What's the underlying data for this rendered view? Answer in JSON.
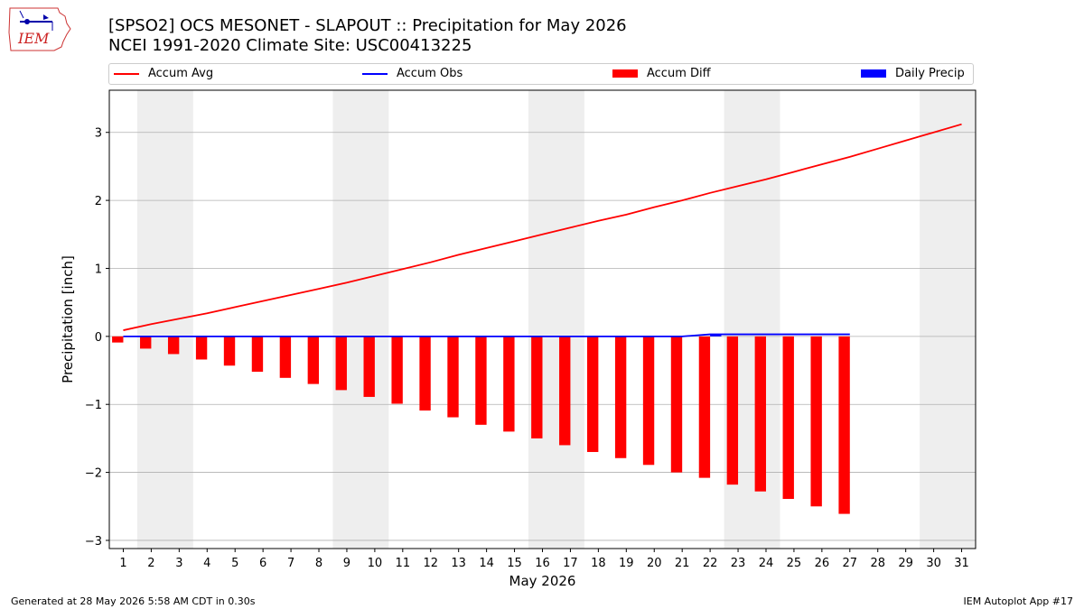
{
  "title_line1": "[SPSO2] OCS MESONET - SLAPOUT :: Precipitation for May 2026",
  "title_line2": "NCEI 1991-2020 Climate Site: USC00413225",
  "logo_text": "IEM",
  "footer_left": "Generated at 28 May 2026 5:58 AM CDT in 0.30s",
  "footer_right": "IEM Autoplot App #17",
  "colors": {
    "accum_avg": "#ff0000",
    "accum_obs": "#0000ff",
    "accum_diff": "#ff0000",
    "daily_precip": "#0000ff",
    "weekend_shade": "#eeeeee",
    "grid": "#b0b0b0"
  },
  "legend": [
    {
      "label": "Accum Avg",
      "kind": "line",
      "color": "#ff0000"
    },
    {
      "label": "Accum Obs",
      "kind": "line",
      "color": "#0000ff"
    },
    {
      "label": "Accum Diff",
      "kind": "box",
      "color": "#ff0000"
    },
    {
      "label": "Daily Precip",
      "kind": "box",
      "color": "#0000ff"
    }
  ],
  "chart_data": {
    "type": "bar",
    "xlabel": "May 2026",
    "ylabel": "Precipitation [inch]",
    "xlim": [
      0.5,
      31.5
    ],
    "ylim": [
      -3.12,
      3.62
    ],
    "yticks": [
      -3,
      -2,
      -1,
      0,
      1,
      2,
      3
    ],
    "ytick_labels": [
      "−3",
      "−2",
      "−1",
      "0",
      "1",
      "2",
      "3"
    ],
    "categories": [
      "1",
      "2",
      "3",
      "4",
      "5",
      "6",
      "7",
      "8",
      "9",
      "10",
      "11",
      "12",
      "13",
      "14",
      "15",
      "16",
      "17",
      "18",
      "19",
      "20",
      "21",
      "22",
      "23",
      "24",
      "25",
      "26",
      "27",
      "28",
      "29",
      "30",
      "31"
    ],
    "grid": "horizontal",
    "weekend_shading": [
      [
        1.5,
        3.5
      ],
      [
        8.5,
        10.5
      ],
      [
        15.5,
        17.5
      ],
      [
        22.5,
        24.5
      ],
      [
        29.5,
        31.5
      ]
    ],
    "series": [
      {
        "name": "Accum Avg",
        "type": "line",
        "x": [
          1,
          2,
          3,
          4,
          5,
          6,
          7,
          8,
          9,
          10,
          11,
          12,
          13,
          14,
          15,
          16,
          17,
          18,
          19,
          20,
          21,
          22,
          23,
          24,
          25,
          26,
          27,
          28,
          29,
          30,
          31
        ],
        "values": [
          0.09,
          0.18,
          0.26,
          0.34,
          0.43,
          0.52,
          0.61,
          0.7,
          0.79,
          0.89,
          0.99,
          1.09,
          1.2,
          1.3,
          1.4,
          1.5,
          1.6,
          1.7,
          1.79,
          1.9,
          2.0,
          2.11,
          2.21,
          2.31,
          2.42,
          2.53,
          2.64,
          2.76,
          2.88,
          3.0,
          3.12
        ]
      },
      {
        "name": "Accum Obs",
        "type": "line",
        "x": [
          1,
          2,
          3,
          4,
          5,
          6,
          7,
          8,
          9,
          10,
          11,
          12,
          13,
          14,
          15,
          16,
          17,
          18,
          19,
          20,
          21,
          22,
          23,
          24,
          25,
          26,
          27
        ],
        "values": [
          0,
          0,
          0,
          0,
          0,
          0,
          0,
          0,
          0,
          0,
          0,
          0,
          0,
          0,
          0,
          0,
          0,
          0,
          0,
          0,
          0,
          0.03,
          0.03,
          0.03,
          0.03,
          0.03,
          0.03
        ]
      },
      {
        "name": "Accum Diff",
        "type": "bar",
        "offset": -0.2,
        "x": [
          1,
          2,
          3,
          4,
          5,
          6,
          7,
          8,
          9,
          10,
          11,
          12,
          13,
          14,
          15,
          16,
          17,
          18,
          19,
          20,
          21,
          22,
          23,
          24,
          25,
          26,
          27
        ],
        "values": [
          -0.09,
          -0.18,
          -0.26,
          -0.34,
          -0.43,
          -0.52,
          -0.61,
          -0.7,
          -0.79,
          -0.89,
          -0.99,
          -1.09,
          -1.19,
          -1.3,
          -1.4,
          -1.5,
          -1.6,
          -1.7,
          -1.79,
          -1.89,
          -2.0,
          -2.08,
          -2.18,
          -2.28,
          -2.39,
          -2.5,
          -2.61
        ]
      },
      {
        "name": "Daily Precip",
        "type": "bar",
        "offset": 0.2,
        "x": [
          22
        ],
        "values": [
          0.03
        ]
      }
    ]
  }
}
